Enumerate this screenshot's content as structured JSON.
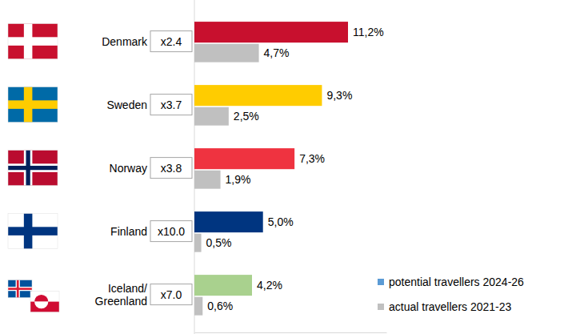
{
  "chart_data": {
    "type": "bar",
    "orientation": "horizontal",
    "categories": [
      "Denmark",
      "Sweden",
      "Norway",
      "Finland",
      "Iceland/\nGreenland"
    ],
    "annotations": [
      "x2.4",
      "x3.7",
      "x3.8",
      "x10.0",
      "x7.0"
    ],
    "series": [
      {
        "name": "potential travellers 2024-26",
        "color": "#5b9bd5",
        "colors": [
          "#c8102e",
          "#ffcc00",
          "#ef3340",
          "#003580",
          "#a9d18e"
        ],
        "values": [
          11.2,
          9.3,
          7.3,
          5.0,
          4.2
        ],
        "value_labels": [
          "11,2%",
          "9,3%",
          "7,3%",
          "5,0%",
          "4,2%"
        ]
      },
      {
        "name": "actual travellers 2021-23",
        "color": "#c0c0c0",
        "values": [
          4.7,
          2.5,
          1.9,
          0.5,
          0.6
        ],
        "value_labels": [
          "4,7%",
          "2,5%",
          "1,9%",
          "0,5%",
          "0,6%"
        ]
      }
    ],
    "xlim": [
      0,
      14
    ],
    "xticks": [],
    "data_labels": true,
    "tick_labels": false,
    "grid": false,
    "legend": "bottom-right"
  }
}
